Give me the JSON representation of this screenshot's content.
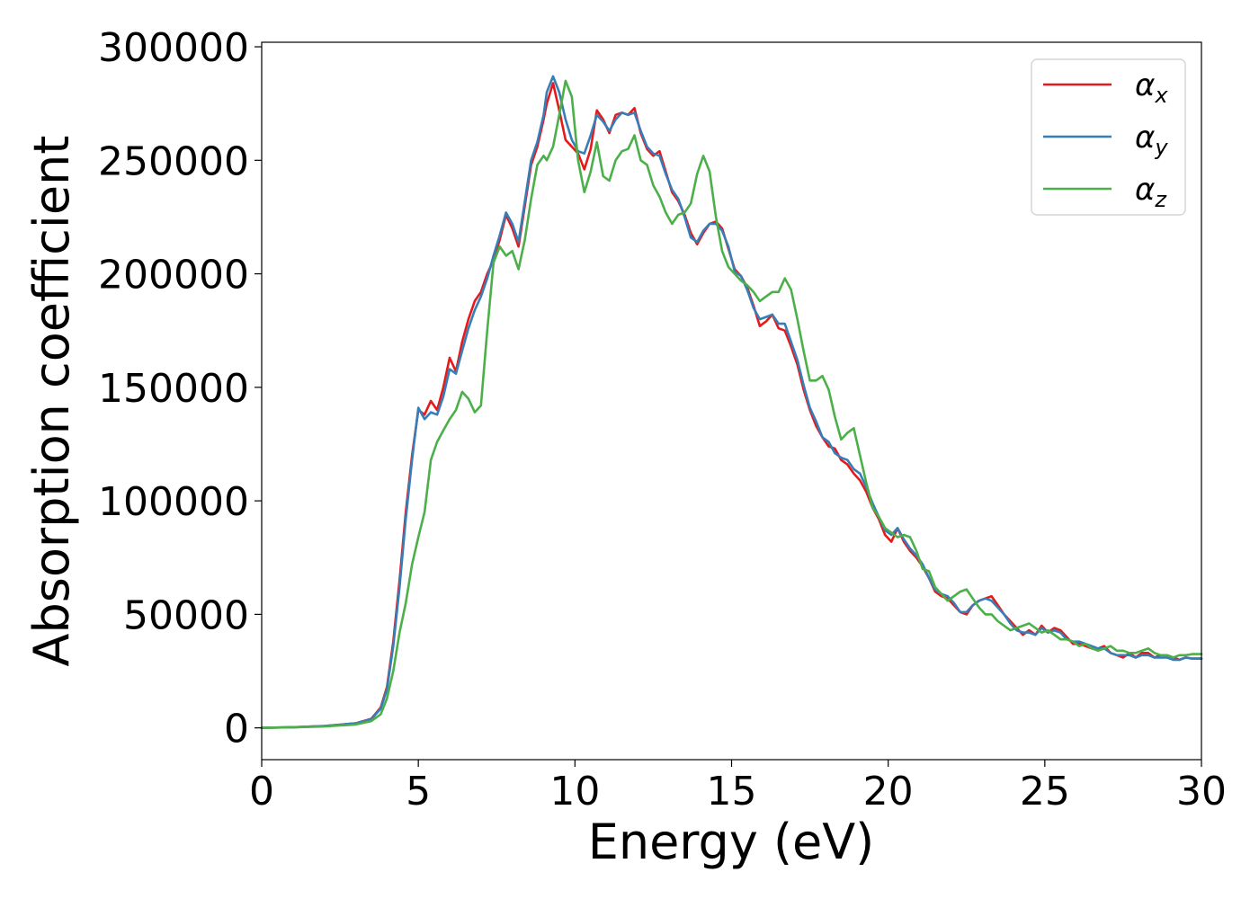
{
  "chart_data": {
    "type": "line",
    "title": "",
    "xlabel": "Energy (eV)",
    "ylabel": "Absorption coefficient",
    "xlim": [
      0,
      30
    ],
    "ylim": [
      -14000,
      302000
    ],
    "xticks": [
      "0",
      "5",
      "10",
      "15",
      "20",
      "25",
      "30"
    ],
    "yticks": [
      "0",
      "50000",
      "100000",
      "150000",
      "200000",
      "250000",
      "300000"
    ],
    "grid": false,
    "legend_position": "top-right",
    "series": [
      {
        "name": "αx",
        "legend_symbol": "α",
        "legend_subscript": "x",
        "color": "#e41a1c",
        "x": [
          0,
          1,
          2,
          3,
          3.5,
          3.8,
          4.0,
          4.2,
          4.4,
          4.6,
          4.8,
          5.0,
          5.2,
          5.4,
          5.6,
          5.8,
          6.0,
          6.2,
          6.4,
          6.6,
          6.8,
          7.0,
          7.2,
          7.4,
          7.6,
          7.8,
          8.0,
          8.2,
          8.4,
          8.6,
          8.8,
          9.0,
          9.1,
          9.3,
          9.5,
          9.7,
          9.9,
          10.1,
          10.3,
          10.5,
          10.7,
          10.9,
          11.1,
          11.3,
          11.5,
          11.7,
          11.9,
          12.1,
          12.3,
          12.5,
          12.7,
          12.9,
          13.1,
          13.3,
          13.5,
          13.7,
          13.9,
          14.1,
          14.3,
          14.5,
          14.7,
          14.9,
          15.1,
          15.3,
          15.5,
          15.7,
          15.9,
          16.1,
          16.3,
          16.5,
          16.7,
          16.9,
          17.1,
          17.3,
          17.5,
          17.7,
          17.9,
          18.1,
          18.3,
          18.5,
          18.7,
          18.9,
          19.1,
          19.3,
          19.5,
          19.7,
          19.9,
          20.1,
          20.3,
          20.5,
          20.7,
          20.9,
          21.1,
          21.3,
          21.5,
          21.7,
          21.9,
          22.1,
          22.3,
          22.5,
          22.7,
          22.9,
          23.1,
          23.3,
          23.5,
          23.7,
          23.9,
          24.1,
          24.3,
          24.5,
          24.7,
          24.9,
          25.1,
          25.3,
          25.5,
          25.7,
          25.9,
          26.1,
          26.3,
          26.5,
          26.7,
          26.9,
          27.1,
          27.3,
          27.5,
          27.7,
          27.9,
          28.1,
          28.3,
          28.5,
          28.7,
          28.9,
          29.1,
          29.3,
          29.5,
          29.7,
          30.0
        ],
        "y": [
          0,
          300,
          800,
          2000,
          4000,
          9000,
          18000,
          38000,
          65000,
          95000,
          120000,
          140000,
          138000,
          144000,
          140000,
          150000,
          163000,
          157000,
          170000,
          180000,
          188000,
          192000,
          200000,
          206000,
          215000,
          226000,
          220000,
          212000,
          230000,
          248000,
          256000,
          268000,
          275000,
          284000,
          272000,
          259000,
          256000,
          253000,
          246000,
          255000,
          272000,
          268000,
          262000,
          270000,
          271000,
          270000,
          273000,
          262000,
          255000,
          252000,
          254000,
          245000,
          236000,
          232000,
          226000,
          218000,
          213000,
          218000,
          222000,
          223000,
          220000,
          211000,
          202000,
          199000,
          194000,
          186000,
          177000,
          179000,
          182000,
          176000,
          175000,
          168000,
          160000,
          149000,
          140000,
          133000,
          128000,
          124000,
          123000,
          118000,
          116000,
          112000,
          109000,
          104000,
          97000,
          92000,
          85000,
          82000,
          88000,
          82000,
          78000,
          75000,
          71000,
          66000,
          60000,
          58000,
          57000,
          54000,
          51000,
          50000,
          54000,
          56000,
          57000,
          58000,
          54000,
          50000,
          47000,
          44000,
          41000,
          43000,
          41000,
          45000,
          42000,
          44000,
          43000,
          40000,
          37000,
          37000,
          36000,
          35000,
          35000,
          36000,
          33000,
          32000,
          31000,
          33000,
          31000,
          33000,
          33000,
          31000,
          32000,
          32000,
          31000,
          30000,
          31000,
          30500,
          30500
        ]
      },
      {
        "name": "αy",
        "legend_symbol": "α",
        "legend_subscript": "y",
        "color": "#377eb8",
        "x": [
          0,
          1,
          2,
          3,
          3.5,
          3.8,
          4.0,
          4.2,
          4.4,
          4.6,
          4.8,
          5.0,
          5.2,
          5.4,
          5.6,
          5.8,
          6.0,
          6.2,
          6.4,
          6.6,
          6.8,
          7.0,
          7.2,
          7.4,
          7.6,
          7.8,
          8.0,
          8.2,
          8.4,
          8.6,
          8.8,
          9.0,
          9.1,
          9.3,
          9.5,
          9.7,
          9.9,
          10.1,
          10.3,
          10.5,
          10.7,
          10.9,
          11.1,
          11.3,
          11.5,
          11.7,
          11.9,
          12.1,
          12.3,
          12.5,
          12.7,
          12.9,
          13.1,
          13.3,
          13.5,
          13.7,
          13.9,
          14.1,
          14.3,
          14.5,
          14.7,
          14.9,
          15.1,
          15.3,
          15.5,
          15.7,
          15.9,
          16.1,
          16.3,
          16.5,
          16.7,
          16.9,
          17.1,
          17.3,
          17.5,
          17.7,
          17.9,
          18.1,
          18.3,
          18.5,
          18.7,
          18.9,
          19.1,
          19.3,
          19.5,
          19.7,
          19.9,
          20.1,
          20.3,
          20.5,
          20.7,
          20.9,
          21.1,
          21.3,
          21.5,
          21.7,
          21.9,
          22.1,
          22.3,
          22.5,
          22.7,
          22.9,
          23.1,
          23.3,
          23.5,
          23.7,
          23.9,
          24.1,
          24.3,
          24.5,
          24.7,
          24.9,
          25.1,
          25.3,
          25.5,
          25.7,
          25.9,
          26.1,
          26.3,
          26.5,
          26.7,
          26.9,
          27.1,
          27.3,
          27.5,
          27.7,
          27.9,
          28.1,
          28.3,
          28.5,
          28.7,
          28.9,
          29.1,
          29.3,
          29.5,
          29.7,
          30.0
        ],
        "y": [
          0,
          300,
          800,
          2000,
          3800,
          8500,
          17000,
          36000,
          62000,
          92000,
          118000,
          141000,
          136000,
          139000,
          138000,
          146000,
          158000,
          156000,
          166000,
          176000,
          184000,
          190000,
          198000,
          208000,
          217000,
          227000,
          222000,
          214000,
          232000,
          250000,
          258000,
          270000,
          280000,
          287000,
          280000,
          268000,
          259000,
          254000,
          253000,
          261000,
          270000,
          267000,
          263000,
          268000,
          271000,
          270000,
          271000,
          263000,
          256000,
          253000,
          252000,
          244000,
          237000,
          233000,
          225000,
          216000,
          214000,
          219000,
          222000,
          222000,
          219000,
          212000,
          201000,
          199000,
          193000,
          185000,
          180000,
          181000,
          182000,
          178000,
          178000,
          170000,
          162000,
          151000,
          141000,
          135000,
          128000,
          126000,
          121000,
          119000,
          118000,
          114000,
          112000,
          106000,
          99000,
          93000,
          87000,
          85000,
          88000,
          83000,
          79000,
          76000,
          72000,
          66000,
          61000,
          59000,
          58000,
          55000,
          51000,
          51000,
          54000,
          56000,
          57000,
          56000,
          53000,
          50000,
          46000,
          43000,
          42000,
          42000,
          41000,
          44000,
          42000,
          43000,
          42000,
          39000,
          38000,
          38000,
          37000,
          36000,
          35000,
          35000,
          33000,
          32000,
          32000,
          32000,
          31000,
          32000,
          32000,
          31000,
          31000,
          31000,
          30000,
          30000,
          31000,
          30500,
          30500
        ]
      },
      {
        "name": "αz",
        "legend_symbol": "α",
        "legend_subscript": "z",
        "color": "#4daf4a",
        "x": [
          0,
          1,
          2,
          3,
          3.5,
          3.8,
          4.0,
          4.2,
          4.4,
          4.6,
          4.8,
          5.0,
          5.2,
          5.4,
          5.6,
          5.8,
          6.0,
          6.2,
          6.4,
          6.6,
          6.8,
          7.0,
          7.2,
          7.4,
          7.6,
          7.8,
          8.0,
          8.2,
          8.4,
          8.6,
          8.8,
          9.0,
          9.1,
          9.3,
          9.5,
          9.7,
          9.9,
          10.1,
          10.3,
          10.5,
          10.7,
          10.9,
          11.1,
          11.3,
          11.5,
          11.7,
          11.9,
          12.1,
          12.3,
          12.5,
          12.7,
          12.9,
          13.1,
          13.3,
          13.5,
          13.7,
          13.9,
          14.1,
          14.3,
          14.5,
          14.7,
          14.9,
          15.1,
          15.3,
          15.5,
          15.7,
          15.9,
          16.1,
          16.3,
          16.5,
          16.7,
          16.9,
          17.1,
          17.3,
          17.5,
          17.7,
          17.9,
          18.1,
          18.3,
          18.5,
          18.7,
          18.9,
          19.1,
          19.3,
          19.5,
          19.7,
          19.9,
          20.1,
          20.3,
          20.5,
          20.7,
          20.9,
          21.1,
          21.3,
          21.5,
          21.7,
          21.9,
          22.1,
          22.3,
          22.5,
          22.7,
          22.9,
          23.1,
          23.3,
          23.5,
          23.7,
          23.9,
          24.1,
          24.3,
          24.5,
          24.7,
          24.9,
          25.1,
          25.3,
          25.5,
          25.7,
          25.9,
          26.1,
          26.3,
          26.5,
          26.7,
          26.9,
          27.1,
          27.3,
          27.5,
          27.7,
          27.9,
          28.1,
          28.3,
          28.5,
          28.7,
          28.9,
          29.1,
          29.3,
          29.5,
          29.7,
          30.0
        ],
        "y": [
          0,
          200,
          600,
          1500,
          3000,
          6000,
          13000,
          25000,
          42000,
          55000,
          72000,
          84000,
          95000,
          118000,
          126000,
          131000,
          136000,
          140000,
          148000,
          145000,
          139000,
          142000,
          175000,
          205000,
          212000,
          208000,
          210000,
          202000,
          215000,
          233000,
          248000,
          252000,
          250000,
          256000,
          270000,
          285000,
          278000,
          250000,
          236000,
          245000,
          258000,
          243000,
          241000,
          250000,
          254000,
          255000,
          261000,
          250000,
          248000,
          239000,
          234000,
          227000,
          222000,
          226000,
          227000,
          231000,
          244000,
          252000,
          245000,
          225000,
          210000,
          203000,
          200000,
          197000,
          195000,
          192000,
          188000,
          190000,
          192000,
          192000,
          198000,
          193000,
          180000,
          166000,
          153000,
          153000,
          155000,
          149000,
          137000,
          127000,
          130000,
          132000,
          120000,
          108000,
          97000,
          93000,
          88000,
          86000,
          84000,
          85000,
          84000,
          78000,
          70000,
          69000,
          62000,
          59000,
          56000,
          58000,
          60000,
          61000,
          57000,
          53000,
          50000,
          50000,
          47000,
          45000,
          43000,
          44000,
          45000,
          46000,
          44000,
          42000,
          43000,
          41000,
          39000,
          39000,
          38000,
          36000,
          37000,
          35000,
          34000,
          35000,
          36000,
          34000,
          34000,
          33000,
          33000,
          34000,
          35000,
          33000,
          32000,
          32000,
          31000,
          32000,
          32000,
          32500,
          32500
        ]
      }
    ]
  }
}
